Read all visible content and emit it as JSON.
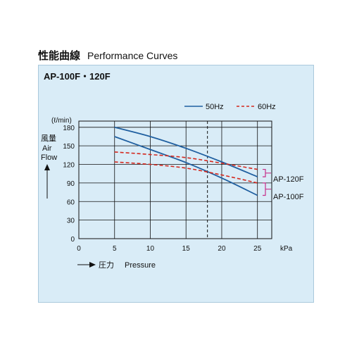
{
  "heading": {
    "jp": "性能曲線",
    "en": "Performance Curves"
  },
  "model_title": "AP-100F・120F",
  "colors": {
    "hz50": "#1f5fa0",
    "hz60": "#d4281e",
    "bracket": "#c8308a",
    "grid": "#111111",
    "panel": "#d9ecf7"
  },
  "chart_data": {
    "type": "line",
    "title": "AP-100F・120F",
    "ylabel_unit": "(ℓ/min)",
    "ylabel_jp": "風量",
    "ylabel_en": [
      "Air",
      "Flow"
    ],
    "xlabel_jp": "圧力",
    "xlabel_en": "Pressure",
    "x_unit": "kPa",
    "xlim": [
      0,
      27
    ],
    "ylim": [
      0,
      190
    ],
    "xticks": [
      0,
      5,
      10,
      15,
      20,
      25
    ],
    "yticks": [
      0,
      30,
      60,
      90,
      120,
      150,
      180
    ],
    "grid": true,
    "reference_line_x": 18,
    "legend": [
      {
        "label": "50Hz",
        "style": "solid"
      },
      {
        "label": "60Hz",
        "style": "dashed"
      }
    ],
    "series": [
      {
        "model": "AP-120F",
        "freq": "50Hz",
        "x": [
          5,
          10,
          15,
          20,
          25
        ],
        "y": [
          180,
          165,
          146,
          124,
          100
        ]
      },
      {
        "model": "AP-100F",
        "freq": "50Hz",
        "x": [
          5,
          10,
          15,
          20,
          25
        ],
        "y": [
          165,
          144,
          123,
          98,
          70
        ]
      },
      {
        "model": "AP-120F",
        "freq": "60Hz",
        "x": [
          5,
          10,
          15,
          20,
          25
        ],
        "y": [
          140,
          136,
          131,
          122,
          112
        ]
      },
      {
        "model": "AP-100F",
        "freq": "60Hz",
        "x": [
          5,
          10,
          15,
          20,
          25
        ],
        "y": [
          124,
          120,
          114,
          103,
          90
        ]
      }
    ],
    "annotations": [
      "AP-120F",
      "AP-100F"
    ]
  }
}
